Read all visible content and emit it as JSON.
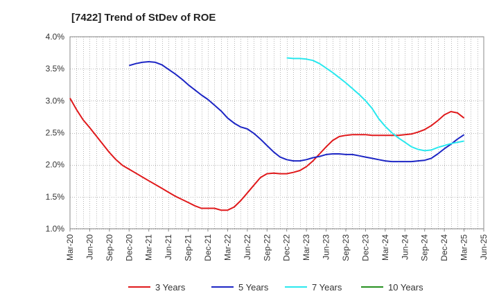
{
  "title": "[7422]  Trend of StDev of ROE",
  "chart_data": {
    "type": "line",
    "title": "[7422]  Trend of StDev of ROE",
    "xlabel": "",
    "ylabel": "",
    "ylim": [
      1.0,
      4.0
    ],
    "yticks": [
      "1.0%",
      "1.5%",
      "2.0%",
      "2.5%",
      "3.0%",
      "3.5%",
      "4.0%"
    ],
    "ytick_values": [
      1.0,
      1.5,
      2.0,
      2.5,
      3.0,
      3.5,
      4.0
    ],
    "xlim": [
      "2020-03",
      "2025-06"
    ],
    "xticks": [
      "Mar-20",
      "Jun-20",
      "Sep-20",
      "Dec-20",
      "Mar-21",
      "Jun-21",
      "Sep-21",
      "Dec-21",
      "Mar-22",
      "Jun-22",
      "Sep-22",
      "Dec-22",
      "Mar-23",
      "Jun-23",
      "Sep-23",
      "Dec-23",
      "Mar-24",
      "Jun-24",
      "Sep-24",
      "Dec-24",
      "Mar-25",
      "Jun-25"
    ],
    "grid": true,
    "legend_position": "bottom",
    "series": [
      {
        "name": "3 Years",
        "color": "#e0191b",
        "x": [
          "2020-03",
          "2020-04",
          "2020-05",
          "2020-06",
          "2020-07",
          "2020-08",
          "2020-09",
          "2020-10",
          "2020-11",
          "2020-12",
          "2021-01",
          "2021-02",
          "2021-03",
          "2021-04",
          "2021-05",
          "2021-06",
          "2021-07",
          "2021-08",
          "2021-09",
          "2021-10",
          "2021-11",
          "2021-12",
          "2022-01",
          "2022-02",
          "2022-03",
          "2022-04",
          "2022-05",
          "2022-06",
          "2022-07",
          "2022-08",
          "2022-09",
          "2022-10",
          "2022-11",
          "2022-12",
          "2023-01",
          "2023-02",
          "2023-03",
          "2023-04",
          "2023-05",
          "2023-06",
          "2023-07",
          "2023-08",
          "2023-09",
          "2023-10",
          "2023-11",
          "2023-12",
          "2024-01",
          "2024-02",
          "2024-03",
          "2024-04",
          "2024-05",
          "2024-06",
          "2024-07",
          "2024-08",
          "2024-09",
          "2024-10",
          "2024-11",
          "2024-12",
          "2025-01",
          "2025-02",
          "2025-03"
        ],
        "values": [
          3.04,
          2.86,
          2.7,
          2.58,
          2.45,
          2.32,
          2.19,
          2.08,
          1.99,
          1.93,
          1.87,
          1.81,
          1.75,
          1.69,
          1.63,
          1.57,
          1.51,
          1.46,
          1.41,
          1.36,
          1.32,
          1.32,
          1.32,
          1.29,
          1.29,
          1.34,
          1.44,
          1.56,
          1.68,
          1.8,
          1.86,
          1.87,
          1.86,
          1.86,
          1.88,
          1.91,
          1.97,
          2.06,
          2.17,
          2.28,
          2.38,
          2.44,
          2.46,
          2.47,
          2.47,
          2.47,
          2.46,
          2.46,
          2.46,
          2.46,
          2.46,
          2.47,
          2.48,
          2.51,
          2.55,
          2.61,
          2.69,
          2.78,
          2.83,
          2.81,
          2.73
        ]
      },
      {
        "name": "5 Years",
        "color": "#1c25c4",
        "x": [
          "2020-12",
          "2021-01",
          "2021-02",
          "2021-03",
          "2021-04",
          "2021-05",
          "2021-06",
          "2021-07",
          "2021-08",
          "2021-09",
          "2021-10",
          "2021-11",
          "2021-12",
          "2022-01",
          "2022-02",
          "2022-03",
          "2022-04",
          "2022-05",
          "2022-06",
          "2022-07",
          "2022-08",
          "2022-09",
          "2022-10",
          "2022-11",
          "2022-12",
          "2023-01",
          "2023-02",
          "2023-03",
          "2023-04",
          "2023-05",
          "2023-06",
          "2023-07",
          "2023-08",
          "2023-09",
          "2023-10",
          "2023-11",
          "2023-12",
          "2024-01",
          "2024-02",
          "2024-03",
          "2024-04",
          "2024-05",
          "2024-06",
          "2024-07",
          "2024-08",
          "2024-09",
          "2024-10",
          "2024-11",
          "2024-12",
          "2025-01",
          "2025-02",
          "2025-03"
        ],
        "values": [
          3.55,
          3.58,
          3.6,
          3.61,
          3.6,
          3.56,
          3.49,
          3.42,
          3.34,
          3.25,
          3.17,
          3.09,
          3.02,
          2.93,
          2.84,
          2.73,
          2.65,
          2.59,
          2.56,
          2.49,
          2.4,
          2.3,
          2.2,
          2.12,
          2.08,
          2.06,
          2.06,
          2.08,
          2.11,
          2.13,
          2.16,
          2.17,
          2.17,
          2.16,
          2.16,
          2.14,
          2.12,
          2.1,
          2.08,
          2.06,
          2.05,
          2.05,
          2.05,
          2.05,
          2.06,
          2.07,
          2.1,
          2.17,
          2.25,
          2.32,
          2.4,
          2.47
        ]
      },
      {
        "name": "7 Years",
        "color": "#29e8ee",
        "x": [
          "2022-12",
          "2023-01",
          "2023-02",
          "2023-03",
          "2023-04",
          "2023-05",
          "2023-06",
          "2023-07",
          "2023-08",
          "2023-09",
          "2023-10",
          "2023-11",
          "2023-12",
          "2024-01",
          "2024-02",
          "2024-03",
          "2024-04",
          "2024-05",
          "2024-06",
          "2024-07",
          "2024-08",
          "2024-09",
          "2024-10",
          "2024-11",
          "2024-12",
          "2025-01",
          "2025-02",
          "2025-03"
        ],
        "values": [
          3.67,
          3.66,
          3.66,
          3.65,
          3.63,
          3.58,
          3.51,
          3.44,
          3.36,
          3.28,
          3.19,
          3.1,
          3.0,
          2.88,
          2.72,
          2.6,
          2.5,
          2.42,
          2.35,
          2.28,
          2.24,
          2.22,
          2.23,
          2.27,
          2.3,
          2.33,
          2.35,
          2.37
        ]
      },
      {
        "name": "10 Years",
        "color": "#25901f",
        "x": [],
        "values": []
      }
    ]
  }
}
